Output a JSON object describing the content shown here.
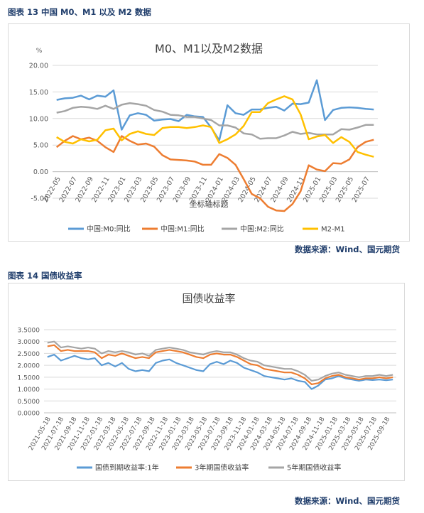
{
  "chart1": {
    "caption": "图表 13  中国 M0、M1 以及 M2 数据",
    "source": "数据来源：Wind、国元期货",
    "chart_data": {
      "type": "line",
      "title": "M0、M1以及M2数据",
      "y_unit": "%",
      "xlabel": "坐标轴标题",
      "ylim": [
        -5,
        20
      ],
      "yticks": [
        "20.00",
        "15.00",
        "10.00",
        "5.00",
        "0.00",
        "-5.00"
      ],
      "x_ticks": [
        "2022-05",
        "2022-07",
        "2022-09",
        "2022-11",
        "2023-01",
        "2023-03",
        "2023-05",
        "2023-07",
        "2023-09",
        "2023-11",
        "2024-01",
        "2024-03",
        "2024-05",
        "2024-07",
        "2024-09",
        "2024-11",
        "2025-01",
        "2025-03",
        "2025-05",
        "2025-07"
      ],
      "months": [
        "2022-05",
        "2022-06",
        "2022-07",
        "2022-08",
        "2022-09",
        "2022-10",
        "2022-11",
        "2022-12",
        "2023-01",
        "2023-02",
        "2023-03",
        "2023-04",
        "2023-05",
        "2023-06",
        "2023-07",
        "2023-08",
        "2023-09",
        "2023-10",
        "2023-11",
        "2023-12",
        "2024-01",
        "2024-02",
        "2024-03",
        "2024-04",
        "2024-05",
        "2024-06",
        "2024-07",
        "2024-08",
        "2024-09",
        "2024-10",
        "2024-11",
        "2024-12",
        "2025-01",
        "2025-02",
        "2025-03",
        "2025-04",
        "2025-05",
        "2025-06",
        "2025-07",
        "2025-08"
      ],
      "grid": true,
      "legend": "bottom",
      "series": [
        {
          "name": "中国:M0:同比",
          "color": "#5b9bd5",
          "values": [
            13.5,
            13.8,
            13.9,
            14.3,
            13.6,
            14.3,
            14.1,
            15.3,
            7.9,
            10.6,
            11.0,
            10.7,
            9.6,
            9.8,
            9.9,
            9.5,
            10.7,
            10.4,
            10.3,
            8.3,
            5.9,
            12.5,
            11.0,
            10.7,
            11.7,
            11.7,
            12.0,
            12.2,
            11.5,
            12.8,
            12.7,
            13.0,
            17.2,
            9.7,
            11.6,
            12.0,
            12.1,
            12.0,
            11.8,
            11.7
          ]
        },
        {
          "name": "中国:M1:同比",
          "color": "#ed7d31",
          "values": [
            4.6,
            5.8,
            6.7,
            6.1,
            6.4,
            5.8,
            4.6,
            3.7,
            6.7,
            5.8,
            5.1,
            5.3,
            4.7,
            3.1,
            2.3,
            2.2,
            2.1,
            1.9,
            1.3,
            1.3,
            3.3,
            2.6,
            1.3,
            -1.4,
            -4.2,
            -5.0,
            -6.6,
            -7.3,
            -7.4,
            -6.1,
            -3.7,
            1.2,
            0.4,
            0.1,
            1.6,
            1.5,
            2.3,
            4.6,
            5.6,
            6.0
          ]
        },
        {
          "name": "中国:M2:同比",
          "color": "#a5a5a5",
          "values": [
            11.1,
            11.4,
            12.0,
            12.2,
            12.1,
            11.8,
            12.4,
            11.8,
            12.6,
            12.9,
            12.7,
            12.4,
            11.6,
            11.3,
            10.7,
            10.6,
            10.3,
            10.3,
            10.0,
            9.7,
            8.7,
            8.7,
            8.3,
            7.2,
            7.0,
            6.2,
            6.3,
            6.3,
            6.8,
            7.5,
            7.1,
            7.3,
            7.0,
            7.0,
            7.0,
            8.0,
            7.9,
            8.3,
            8.8,
            8.8
          ]
        },
        {
          "name": "M2-M1",
          "color": "#ffc000",
          "values": [
            6.5,
            5.6,
            5.3,
            6.1,
            5.7,
            6.0,
            7.8,
            8.1,
            5.9,
            7.1,
            7.6,
            7.1,
            6.9,
            8.2,
            8.4,
            8.4,
            8.2,
            8.4,
            8.7,
            8.4,
            5.4,
            6.1,
            7.0,
            8.6,
            11.2,
            11.2,
            12.9,
            13.6,
            14.2,
            13.6,
            10.8,
            6.1,
            6.6,
            6.9,
            5.4,
            6.5,
            5.6,
            3.7,
            3.2,
            2.8
          ]
        }
      ]
    }
  },
  "chart2": {
    "caption": "图表 14  国债收益率",
    "source": "数据来源：Wind、国元期货",
    "chart_data": {
      "type": "line",
      "title": "国债收益率",
      "ylim": [
        0,
        3.5
      ],
      "yticks": [
        "3.5000",
        "3.0000",
        "2.5000",
        "2.0000",
        "1.5000",
        "1.0000",
        "0.5000",
        "0.0000"
      ],
      "x_ticks": [
        "2021-05-18",
        "2021-07-18",
        "2021-09-18",
        "2021-11-18",
        "2022-01-18",
        "2022-03-18",
        "2022-05-18",
        "2022-07-18",
        "2022-09-18",
        "2022-11-18",
        "2023-01-18",
        "2023-03-18",
        "2023-05-18",
        "2023-07-18",
        "2023-09-18",
        "2023-11-18",
        "2024-01-18",
        "2024-03-18",
        "2024-05-18",
        "2024-07-18",
        "2024-09-18",
        "2024-11-18",
        "2025-01-18",
        "2025-03-18",
        "2025-05-18",
        "2025-07-18",
        "2025-09-18"
      ],
      "grid": true,
      "legend": "bottom",
      "series": [
        {
          "name": "国债到期收益率:1年",
          "color": "#5b9bd5",
          "values": [
            2.35,
            2.45,
            2.2,
            2.3,
            2.4,
            2.3,
            2.25,
            2.3,
            2.0,
            2.1,
            1.95,
            2.1,
            1.85,
            1.75,
            1.8,
            1.75,
            2.1,
            2.2,
            2.25,
            2.1,
            2.0,
            1.9,
            1.8,
            1.75,
            2.05,
            2.15,
            2.05,
            2.2,
            2.1,
            1.9,
            1.8,
            1.7,
            1.55,
            1.5,
            1.45,
            1.4,
            1.45,
            1.35,
            1.3,
            1.0,
            1.15,
            1.4,
            1.45,
            1.55,
            1.45,
            1.4,
            1.35,
            1.4,
            1.38,
            1.4,
            1.37,
            1.4
          ]
        },
        {
          "name": "3年期国债收益率",
          "color": "#ed7d31",
          "values": [
            2.8,
            2.85,
            2.6,
            2.65,
            2.6,
            2.6,
            2.6,
            2.55,
            2.3,
            2.45,
            2.4,
            2.5,
            2.4,
            2.3,
            2.35,
            2.3,
            2.55,
            2.6,
            2.65,
            2.6,
            2.55,
            2.45,
            2.35,
            2.3,
            2.45,
            2.5,
            2.45,
            2.45,
            2.35,
            2.2,
            2.05,
            2.0,
            1.85,
            1.8,
            1.75,
            1.7,
            1.7,
            1.6,
            1.45,
            1.2,
            1.25,
            1.45,
            1.55,
            1.6,
            1.5,
            1.45,
            1.4,
            1.45,
            1.45,
            1.5,
            1.45,
            1.5
          ]
        },
        {
          "name": "5年期国债收益率",
          "color": "#a5a5a5",
          "values": [
            2.95,
            3.0,
            2.75,
            2.8,
            2.75,
            2.7,
            2.75,
            2.7,
            2.5,
            2.6,
            2.55,
            2.6,
            2.55,
            2.45,
            2.5,
            2.4,
            2.65,
            2.7,
            2.75,
            2.7,
            2.65,
            2.55,
            2.5,
            2.45,
            2.55,
            2.6,
            2.55,
            2.55,
            2.45,
            2.3,
            2.2,
            2.15,
            2.0,
            1.95,
            1.9,
            1.85,
            1.85,
            1.75,
            1.6,
            1.35,
            1.4,
            1.55,
            1.65,
            1.7,
            1.6,
            1.55,
            1.5,
            1.55,
            1.55,
            1.6,
            1.55,
            1.6
          ]
        }
      ]
    }
  }
}
